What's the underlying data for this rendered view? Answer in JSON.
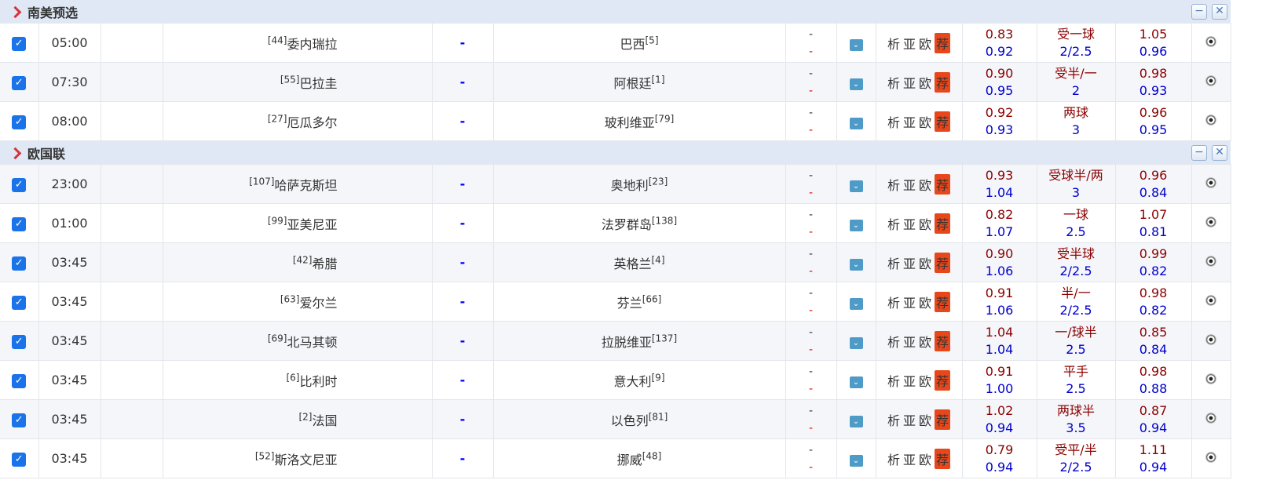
{
  "sections": [
    {
      "name": "南美预选",
      "matches": [
        {
          "time": "05:00",
          "home_rank": "[44]",
          "home": "委内瑞拉",
          "away": "巴西",
          "away_rank": "[5]",
          "h1": "0.83",
          "hcap": "受一球",
          "a1": "1.05",
          "h2": "0.92",
          "total": "2/2.5",
          "a2": "0.96"
        },
        {
          "time": "07:30",
          "home_rank": "[55]",
          "home": "巴拉圭",
          "away": "阿根廷",
          "away_rank": "[1]",
          "h1": "0.90",
          "hcap": "受半/一",
          "a1": "0.98",
          "h2": "0.95",
          "total": "2",
          "a2": "0.93"
        },
        {
          "time": "08:00",
          "home_rank": "[27]",
          "home": "厄瓜多尔",
          "away": "玻利维亚",
          "away_rank": "[79]",
          "h1": "0.92",
          "hcap": "两球",
          "a1": "0.96",
          "h2": "0.93",
          "total": "3",
          "a2": "0.95"
        }
      ]
    },
    {
      "name": "欧国联",
      "matches": [
        {
          "time": "23:00",
          "home_rank": "[107]",
          "home": "哈萨克斯坦",
          "away": "奥地利",
          "away_rank": "[23]",
          "h1": "0.93",
          "hcap": "受球半/两",
          "a1": "0.96",
          "h2": "1.04",
          "total": "3",
          "a2": "0.84"
        },
        {
          "time": "01:00",
          "home_rank": "[99]",
          "home": "亚美尼亚",
          "away": "法罗群岛",
          "away_rank": "[138]",
          "h1": "0.82",
          "hcap": "一球",
          "a1": "1.07",
          "h2": "1.07",
          "total": "2.5",
          "a2": "0.81"
        },
        {
          "time": "03:45",
          "home_rank": "[42]",
          "home": "希腊",
          "away": "英格兰",
          "away_rank": "[4]",
          "h1": "0.90",
          "hcap": "受半球",
          "a1": "0.99",
          "h2": "1.06",
          "total": "2/2.5",
          "a2": "0.82"
        },
        {
          "time": "03:45",
          "home_rank": "[63]",
          "home": "爱尔兰",
          "away": "芬兰",
          "away_rank": "[66]",
          "h1": "0.91",
          "hcap": "半/一",
          "a1": "0.98",
          "h2": "1.06",
          "total": "2/2.5",
          "a2": "0.82"
        },
        {
          "time": "03:45",
          "home_rank": "[69]",
          "home": "北马其顿",
          "away": "拉脱维亚",
          "away_rank": "[137]",
          "h1": "1.04",
          "hcap": "一/球半",
          "a1": "0.85",
          "h2": "1.04",
          "total": "2.5",
          "a2": "0.84"
        },
        {
          "time": "03:45",
          "home_rank": "[6]",
          "home": "比利时",
          "away": "意大利",
          "away_rank": "[9]",
          "h1": "0.91",
          "hcap": "平手",
          "a1": "0.98",
          "h2": "1.00",
          "total": "2.5",
          "a2": "0.88"
        },
        {
          "time": "03:45",
          "home_rank": "[2]",
          "home": "法国",
          "away": "以色列",
          "away_rank": "[81]",
          "h1": "1.02",
          "hcap": "两球半",
          "a1": "0.87",
          "h2": "0.94",
          "total": "3.5",
          "a2": "0.94"
        },
        {
          "time": "03:45",
          "home_rank": "[52]",
          "home": "斯洛文尼亚",
          "away": "挪威",
          "away_rank": "[48]",
          "h1": "0.79",
          "hcap": "受平/半",
          "a1": "1.11",
          "h2": "0.94",
          "total": "2/2.5",
          "a2": "0.94"
        }
      ]
    }
  ],
  "labels": {
    "vs": "-",
    "score_top": "-",
    "score_bottom": "-",
    "analysis": "析",
    "asia": "亚",
    "europe": "欧",
    "recommend": "荐",
    "minimize": "−",
    "close": "✕",
    "check": "✓",
    "dropdown": "⌄"
  },
  "colors": {
    "section_bg": "#dfe8f4",
    "odds_top": "#8b0000",
    "odds_bottom": "#0000cd",
    "recommend_badge": "#e8471b",
    "checkbox": "#1a73e8"
  }
}
